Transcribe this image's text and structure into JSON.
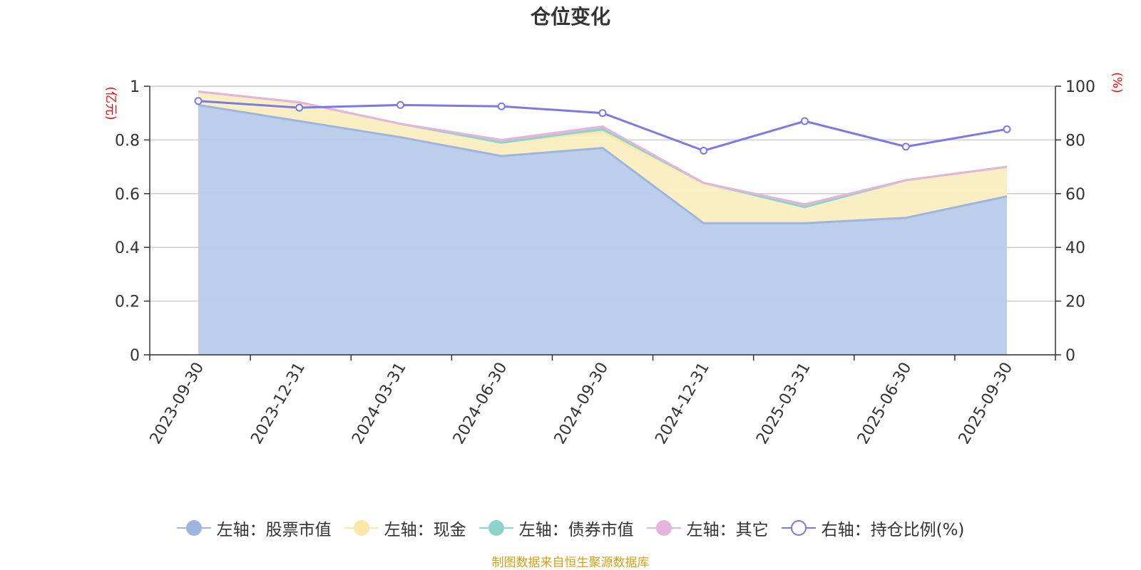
{
  "title": "仓位变化",
  "source_note": "制图数据来自恒生聚源数据库",
  "chart_data": {
    "type": "area",
    "title": "仓位变化",
    "categories": [
      "2023-09-30",
      "2023-12-31",
      "2024-03-31",
      "2024-06-30",
      "2024-09-30",
      "2024-12-31",
      "2025-03-31",
      "2025-06-30",
      "2025-09-30"
    ],
    "left_axis": {
      "unit": "(亿元)",
      "ylim": [
        0,
        1
      ],
      "ticks": [
        "0",
        "0.2",
        "0.4",
        "0.6",
        "0.8",
        "1"
      ]
    },
    "right_axis": {
      "unit": "(%)",
      "ylim": [
        0,
        100
      ],
      "ticks": [
        "0",
        "20",
        "40",
        "60",
        "80",
        "100"
      ]
    },
    "grid": true,
    "legend_position": "bottom",
    "series": [
      {
        "name": "左轴：股票市值",
        "axis": "left",
        "stack": true,
        "color": "#9db5e0",
        "fill": "#b8cbe9",
        "values": [
          0.93,
          0.87,
          0.81,
          0.74,
          0.77,
          0.49,
          0.49,
          0.51,
          0.59
        ]
      },
      {
        "name": "左轴：现金",
        "axis": "left",
        "stack": true,
        "color": "#f9e8a6",
        "fill": "#faeec0",
        "values": [
          0.05,
          0.07,
          0.05,
          0.05,
          0.06,
          0.15,
          0.06,
          0.14,
          0.11
        ]
      },
      {
        "name": "左轴：债券市值",
        "axis": "left",
        "stack": true,
        "color": "#8fd3cf",
        "fill": "#8fd3cf",
        "values": [
          0.0,
          0.0,
          0.0,
          0.0,
          0.01,
          0.0,
          0.0,
          0.0,
          0.0
        ]
      },
      {
        "name": "左轴：其它",
        "axis": "left",
        "stack": true,
        "color": "#e6b3db",
        "fill": "#e6b3db",
        "values": [
          0.0,
          0.0,
          0.0,
          0.01,
          0.01,
          0.0,
          0.01,
          0.0,
          0.0
        ]
      },
      {
        "name": "右轴：持仓比例(%)",
        "axis": "right",
        "stack": false,
        "color": "#7a7ae6",
        "values": [
          94.5,
          92.0,
          93.0,
          92.5,
          90.0,
          76.0,
          87.0,
          77.5,
          84.0
        ]
      }
    ]
  }
}
